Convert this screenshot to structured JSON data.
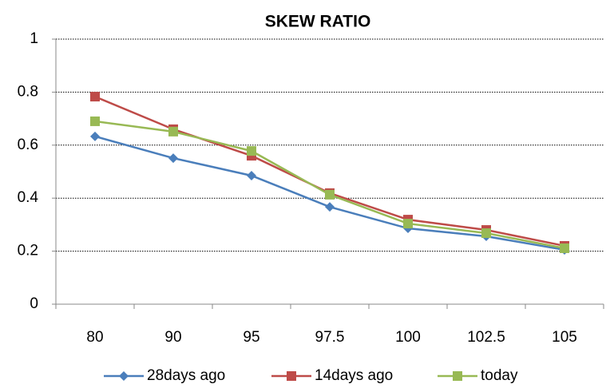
{
  "chart_data": {
    "type": "line",
    "title": "SKEW RATIO",
    "categories": [
      "80",
      "90",
      "95",
      "97.5",
      "100",
      "102.5",
      "105"
    ],
    "series": [
      {
        "name": "28days ago",
        "color": "#4a7ebb",
        "marker": "diamond",
        "values": [
          0.633,
          0.551,
          0.485,
          0.367,
          0.286,
          0.256,
          0.205
        ]
      },
      {
        "name": "14days ago",
        "color": "#be4b48",
        "marker": "square",
        "values": [
          0.783,
          0.66,
          0.56,
          0.419,
          0.319,
          0.28,
          0.22
        ]
      },
      {
        "name": "today",
        "color": "#98b954",
        "marker": "square",
        "values": [
          0.69,
          0.651,
          0.578,
          0.413,
          0.304,
          0.268,
          0.211
        ]
      }
    ],
    "ylim": [
      0,
      1
    ],
    "yticks": [
      0,
      0.2,
      0.4,
      0.6,
      0.8,
      1
    ],
    "grid": true,
    "legend": "bottom"
  }
}
